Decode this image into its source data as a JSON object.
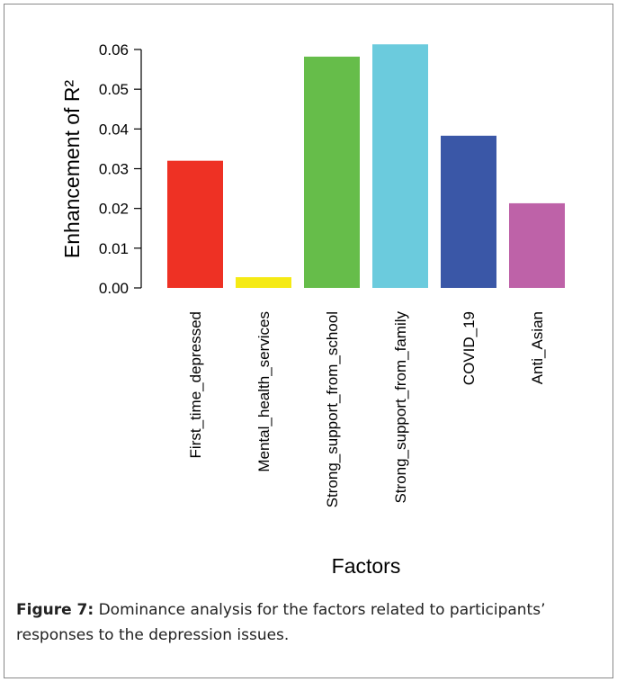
{
  "chart_data": {
    "type": "bar",
    "ylabel": "Enhancement of R²",
    "xlabel": "Factors",
    "categories": [
      "First_time_depressed",
      "Mental_health_services",
      "Strong_support_from_school",
      "Strong_support_from_family",
      "COVID_19",
      "Anti_Asian"
    ],
    "values": [
      0.032,
      0.0027,
      0.0582,
      0.0613,
      0.0383,
      0.0213
    ],
    "colors": [
      "#ee3124",
      "#f5ea14",
      "#66bd4a",
      "#6bcbdd",
      "#3a57a7",
      "#be62a8"
    ],
    "ylim": [
      0,
      0.06
    ],
    "yticks": [
      {
        "value": 0,
        "label": "0.00"
      },
      0.01,
      0.02,
      0.03,
      0.04,
      0.05,
      0.06
    ],
    "grid": false
  },
  "caption": {
    "label": "Figure 7:",
    "text": " Dominance analysis for the factors related to participants’ responses to the depression issues."
  }
}
